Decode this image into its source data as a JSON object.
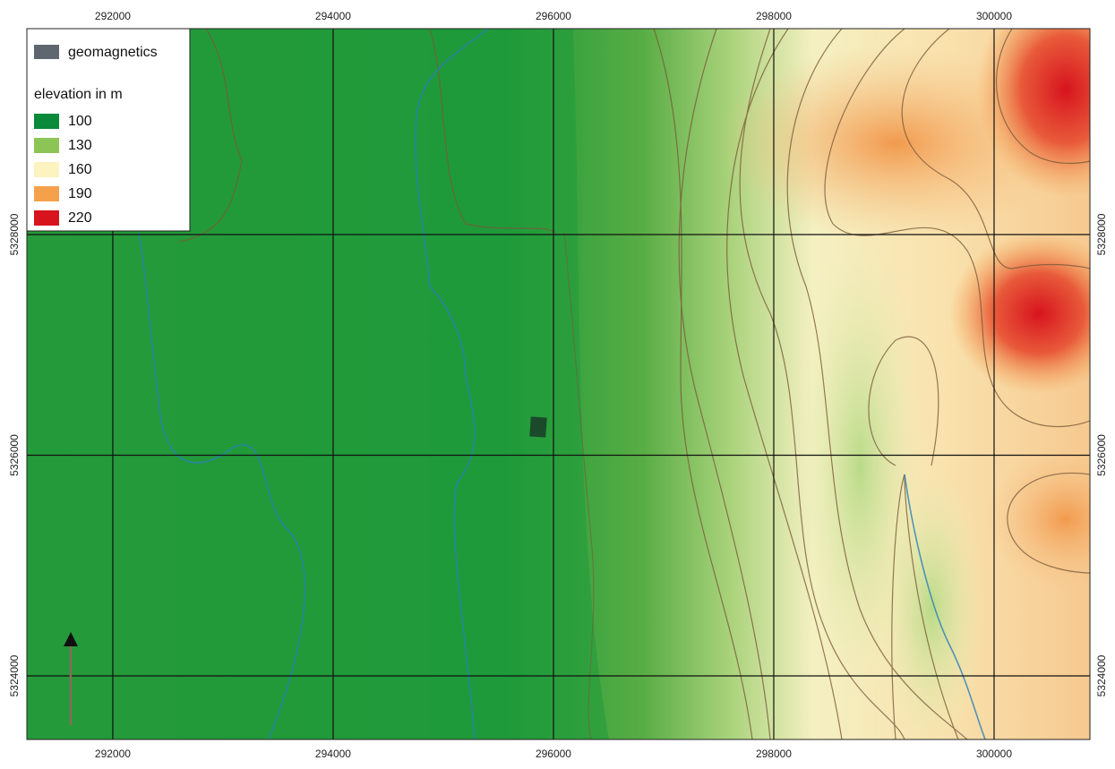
{
  "map": {
    "xticks": [
      292000,
      294000,
      296000,
      298000,
      300000
    ],
    "yticks": [
      5328000,
      5326000,
      5324000
    ],
    "xlim": [
      291220,
      300870
    ],
    "ylim": [
      5323424,
      5329866
    ],
    "grid": true,
    "legend": {
      "feature": {
        "label": "geomagnetics",
        "color": "#5f6670"
      },
      "title": "elevation in m",
      "classes": [
        {
          "value": 100,
          "color": "#0a8a3a"
        },
        {
          "value": 130,
          "color": "#8cc456"
        },
        {
          "value": 160,
          "color": "#fdf3c0"
        },
        {
          "value": 190,
          "color": "#f5a04a"
        },
        {
          "value": 220,
          "color": "#d7141e"
        }
      ]
    }
  }
}
